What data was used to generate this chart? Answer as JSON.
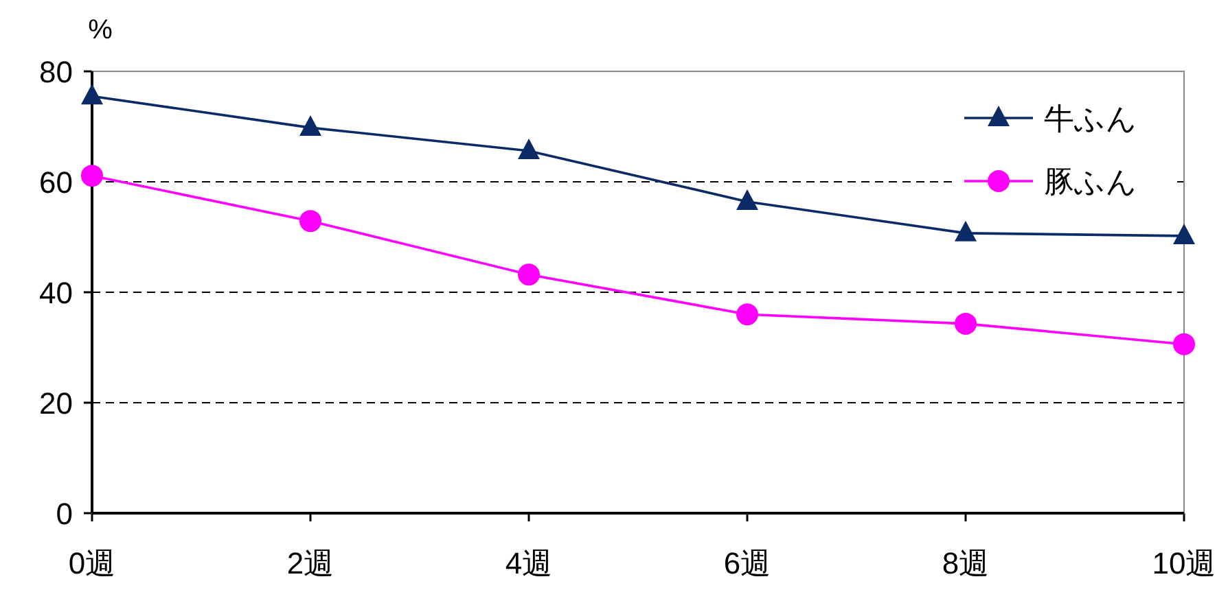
{
  "chart_data": {
    "type": "line",
    "ylabel": "%",
    "categories": [
      "0週",
      "2週",
      "4週",
      "6週",
      "8週",
      "10週"
    ],
    "series": [
      {
        "name": "牛ふん",
        "color": "#0b2a66",
        "marker": "triangle",
        "values": [
          75.5,
          69.8,
          65.6,
          56.4,
          50.7,
          50.2
        ]
      },
      {
        "name": "豚ふん",
        "color": "#ff00ff",
        "marker": "circle",
        "values": [
          61.1,
          52.9,
          43.2,
          36.0,
          34.3,
          30.6
        ]
      }
    ],
    "ylim": [
      0,
      80
    ],
    "yticks": [
      0,
      20,
      40,
      60,
      80
    ],
    "grid": "y",
    "legend": "top right",
    "line_style": "solid"
  }
}
